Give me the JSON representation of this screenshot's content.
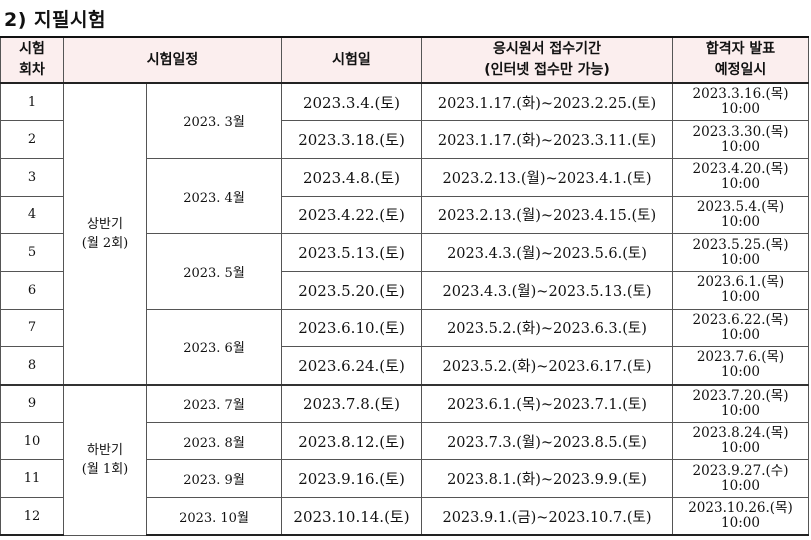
{
  "title": "2) 지필시험",
  "headers": {
    "round": "시험\n회차",
    "schedule": "시험일정",
    "exam_date": "시험일",
    "application": "응시원서 접수기간\n(인터넷 접수만 가능)",
    "announcement": "합격자 발표\n예정일시"
  },
  "halves": [
    {
      "label": "상반기\n(월 2회)"
    },
    {
      "label": "하반기\n(월 1회)"
    }
  ],
  "months": [
    "2023. 3월",
    "2023. 4월",
    "2023. 5월",
    "2023. 6월",
    "2023. 7월",
    "2023. 8월",
    "2023. 9월",
    "2023. 10월"
  ],
  "rows": [
    {
      "no": "1",
      "date": "2023.3.4.(토)",
      "apply": "2023.1.17.(화)~2023.2.25.(토)",
      "ann_date": "2023.3.16.(목)",
      "ann_time": "10:00"
    },
    {
      "no": "2",
      "date": "2023.3.18.(토)",
      "apply": "2023.1.17.(화)~2023.3.11.(토)",
      "ann_date": "2023.3.30.(목)",
      "ann_time": "10:00"
    },
    {
      "no": "3",
      "date": "2023.4.8.(토)",
      "apply": "2023.2.13.(월)~2023.4.1.(토)",
      "ann_date": "2023.4.20.(목)",
      "ann_time": "10:00"
    },
    {
      "no": "4",
      "date": "2023.4.22.(토)",
      "apply": "2023.2.13.(월)~2023.4.15.(토)",
      "ann_date": "2023.5.4.(목)",
      "ann_time": "10:00"
    },
    {
      "no": "5",
      "date": "2023.5.13.(토)",
      "apply": "2023.4.3.(월)~2023.5.6.(토)",
      "ann_date": "2023.5.25.(목)",
      "ann_time": "10:00"
    },
    {
      "no": "6",
      "date": "2023.5.20.(토)",
      "apply": "2023.4.3.(월)~2023.5.13.(토)",
      "ann_date": "2023.6.1.(목)",
      "ann_time": "10:00"
    },
    {
      "no": "7",
      "date": "2023.6.10.(토)",
      "apply": "2023.5.2.(화)~2023.6.3.(토)",
      "ann_date": "2023.6.22.(목)",
      "ann_time": "10:00"
    },
    {
      "no": "8",
      "date": "2023.6.24.(토)",
      "apply": "2023.5.2.(화)~2023.6.17.(토)",
      "ann_date": "2023.7.6.(목)",
      "ann_time": "10:00"
    },
    {
      "no": "9",
      "date": "2023.7.8.(토)",
      "apply": "2023.6.1.(목)~2023.7.1.(토)",
      "ann_date": "2023.7.20.(목)",
      "ann_time": "10:00"
    },
    {
      "no": "10",
      "date": "2023.8.12.(토)",
      "apply": "2023.7.3.(월)~2023.8.5.(토)",
      "ann_date": "2023.8.24.(목)",
      "ann_time": "10:00"
    },
    {
      "no": "11",
      "date": "2023.9.16.(토)",
      "apply": "2023.8.1.(화)~2023.9.9.(토)",
      "ann_date": "2023.9.27.(수)",
      "ann_time": "10:00"
    },
    {
      "no": "12",
      "date": "2023.10.14.(토)",
      "apply": "2023.9.1.(금)~2023.10.7.(토)",
      "ann_date": "2023.10.26.(목)",
      "ann_time": "10:00"
    }
  ]
}
